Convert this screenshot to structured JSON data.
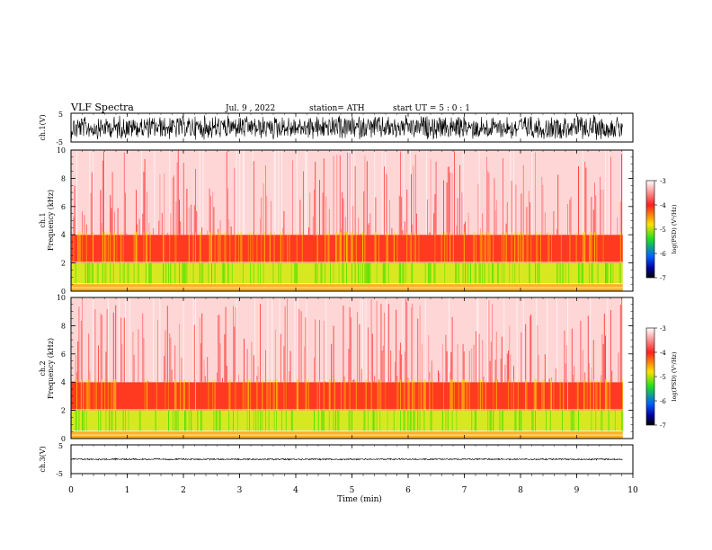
{
  "header": {
    "title": "VLF  Spectra",
    "date": "Jul.  9  , 2022",
    "station": "station= ATH",
    "start": "start  UT  =    5  : 0  : 1"
  },
  "chart_data": [
    {
      "type": "line",
      "panel": "ch1-waveform",
      "ylabel": "ch.1(V)",
      "ylim": [
        -5,
        5
      ],
      "yticks": [
        "5",
        "-5"
      ],
      "amplitude": 4.5
    },
    {
      "type": "heatmap",
      "panel": "ch1-spectrogram",
      "ylabel": "ch.1\nFrequency  (kHz)",
      "ylabel_line1": "ch.1",
      "ylabel_line2": "Frequency  (kHz)",
      "ylim": [
        0,
        10
      ],
      "yticks": [
        "0",
        "2",
        "4",
        "6",
        "8",
        "10"
      ],
      "colorbar": {
        "label": "log(PSD) (V²/Hz)",
        "range": [
          -7,
          -3
        ],
        "ticks": [
          "-3",
          "-4",
          "-5",
          "-6",
          "-7"
        ]
      },
      "bands": [
        {
          "from": 0,
          "to": 0.5,
          "level": "yellow-red"
        },
        {
          "from": 0.5,
          "to": 2,
          "level": "yellow-green"
        },
        {
          "from": 2,
          "to": 4,
          "level": "red-orange"
        },
        {
          "from": 4,
          "to": 10,
          "level": "white-red"
        }
      ]
    },
    {
      "type": "heatmap",
      "panel": "ch2-spectrogram",
      "ylabel": "ch.2\nFrequency  (kHz)",
      "ylabel_line1": "ch.2",
      "ylabel_line2": "Frequency  (kHz)",
      "ylim": [
        0,
        10
      ],
      "yticks": [
        "0",
        "2",
        "4",
        "6",
        "8",
        "10"
      ],
      "colorbar": {
        "label": "log(PSD) (V²/Hz)",
        "range": [
          -7,
          -3
        ],
        "ticks": [
          "-3",
          "-4",
          "-5",
          "-6",
          "-7"
        ]
      },
      "bands": [
        {
          "from": 0,
          "to": 0.5,
          "level": "yellow-red"
        },
        {
          "from": 0.5,
          "to": 2,
          "level": "yellow-green"
        },
        {
          "from": 2,
          "to": 4,
          "level": "red-orange"
        },
        {
          "from": 4,
          "to": 10,
          "level": "white-red"
        }
      ]
    },
    {
      "type": "line",
      "panel": "ch3-waveform",
      "ylabel": "ch.3(V)",
      "ylim": [
        -5,
        5
      ],
      "yticks": [
        "5",
        "-5"
      ],
      "amplitude": 0.3
    }
  ],
  "xaxis": {
    "label": "Time  (min)",
    "xlim": [
      0,
      10
    ],
    "data_end": 9.82,
    "ticks": [
      "0",
      "1",
      "2",
      "3",
      "4",
      "5",
      "6",
      "7",
      "8",
      "9",
      "10"
    ]
  },
  "colors": {
    "white": "#ffffff",
    "red": "#ff2020",
    "yellow": "#ffe000",
    "green": "#40e000"
  }
}
